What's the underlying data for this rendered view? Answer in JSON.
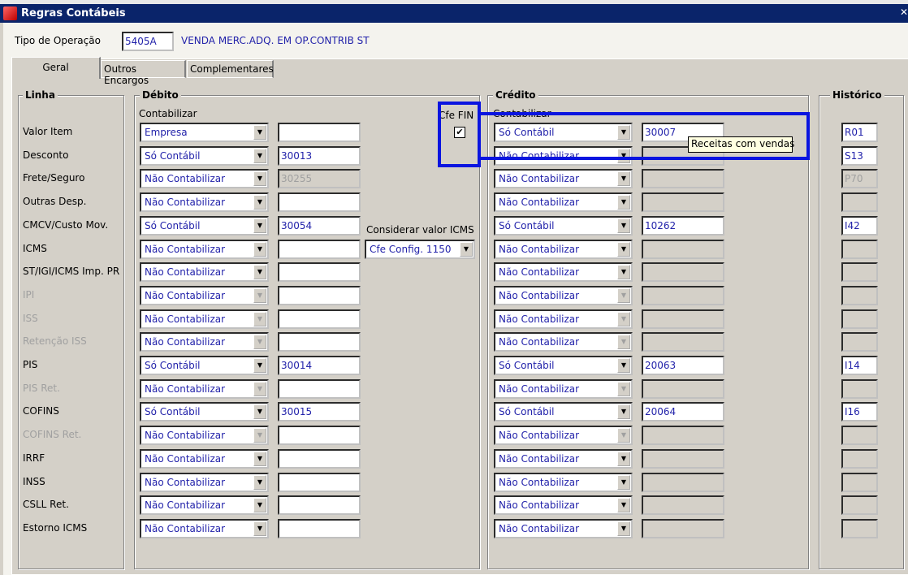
{
  "window": {
    "title": "Regras Contábeis"
  },
  "header": {
    "tipo_label": "Tipo de Operação",
    "tipo_value": "5405A",
    "tipo_desc": "VENDA MERC.ADQ. EM OP.CONTRIB ST"
  },
  "tabs": [
    {
      "label": "Geral",
      "active": true
    },
    {
      "label": "Outros Encargos"
    },
    {
      "label": "Complementares"
    }
  ],
  "groups": {
    "linha": "Linha",
    "debito": "Débito",
    "credito": "Crédito",
    "historico": "Histórico"
  },
  "debito_sub": "Contabilizar",
  "credito_sub": "Contabilizar",
  "cfe_fin": {
    "label": "Cfe FIN",
    "checked": true,
    "check_glyph": "✔"
  },
  "considerar": {
    "label": "Considerar valor ICMS",
    "value": "Cfe Config. 1150"
  },
  "tooltip": "Receitas com vendas",
  "highlight_color": "#0a14e0",
  "rows": [
    {
      "label": "Valor Item",
      "deb": "Empresa",
      "deb_acc": "",
      "cred": "Só Contábil",
      "cred_acc": "30007",
      "hist": "R01"
    },
    {
      "label": "Desconto",
      "deb": "Só Contábil",
      "deb_acc": "30013",
      "cred": "Não Contabilizar",
      "cred_acc": "",
      "hist": "S13"
    },
    {
      "label": "Frete/Seguro",
      "deb": "Não Contabilizar",
      "deb_acc": "30255",
      "deb_acc_disabled": true,
      "cred": "Não Contabilizar",
      "cred_acc": "",
      "hist": "P70",
      "hist_disabled": true
    },
    {
      "label": "Outras Desp.",
      "deb": "Não Contabilizar",
      "deb_acc": "",
      "cred": "Não Contabilizar",
      "cred_acc": "",
      "hist": ""
    },
    {
      "label": "CMCV/Custo Mov.",
      "deb": "Só Contábil",
      "deb_acc": "30054",
      "cred": "Só Contábil",
      "cred_acc": "10262",
      "hist": "I42"
    },
    {
      "label": "ICMS",
      "deb": "Não Contabilizar",
      "deb_acc": "",
      "cred": "Não Contabilizar",
      "cred_acc": "",
      "hist": ""
    },
    {
      "label": "ST/IGI/ICMS Imp. PR",
      "deb": "Não Contabilizar",
      "deb_acc": "",
      "cred": "Não Contabilizar",
      "cred_acc": "",
      "hist": ""
    },
    {
      "label": "IPI",
      "disabled": true,
      "deb": "Não Contabilizar",
      "deb_acc": "",
      "cred": "Não Contabilizar",
      "cred_acc": "",
      "hist": ""
    },
    {
      "label": "ISS",
      "disabled": true,
      "deb": "Não Contabilizar",
      "deb_acc": "",
      "cred": "Não Contabilizar",
      "cred_acc": "",
      "hist": ""
    },
    {
      "label": "Retenção ISS",
      "disabled": true,
      "deb": "Não Contabilizar",
      "deb_acc": "",
      "cred": "Não Contabilizar",
      "cred_acc": "",
      "hist": ""
    },
    {
      "label": "PIS",
      "deb": "Só Contábil",
      "deb_acc": "30014",
      "cred": "Só Contábil",
      "cred_acc": "20063",
      "hist": "I14"
    },
    {
      "label": "PIS Ret.",
      "disabled": true,
      "deb": "Não Contabilizar",
      "deb_acc": "",
      "cred": "Não Contabilizar",
      "cred_acc": "",
      "hist": ""
    },
    {
      "label": "COFINS",
      "deb": "Só Contábil",
      "deb_acc": "30015",
      "cred": "Só Contábil",
      "cred_acc": "20064",
      "hist": "I16"
    },
    {
      "label": "COFINS Ret.",
      "disabled": true,
      "deb": "Não Contabilizar",
      "deb_acc": "",
      "cred": "Não Contabilizar",
      "cred_acc": "",
      "hist": ""
    },
    {
      "label": "IRRF",
      "deb": "Não Contabilizar",
      "deb_acc": "",
      "cred": "Não Contabilizar",
      "cred_acc": "",
      "hist": ""
    },
    {
      "label": "INSS",
      "deb": "Não Contabilizar",
      "deb_acc": "",
      "cred": "Não Contabilizar",
      "cred_acc": "",
      "hist": ""
    },
    {
      "label": "CSLL Ret.",
      "deb": "Não Contabilizar",
      "deb_acc": "",
      "cred": "Não Contabilizar",
      "cred_acc": "",
      "hist": ""
    },
    {
      "label": "Estorno ICMS",
      "deb": "Não Contabilizar",
      "deb_acc": "",
      "cred": "Não Contabilizar",
      "cred_acc": "",
      "hist": ""
    }
  ]
}
